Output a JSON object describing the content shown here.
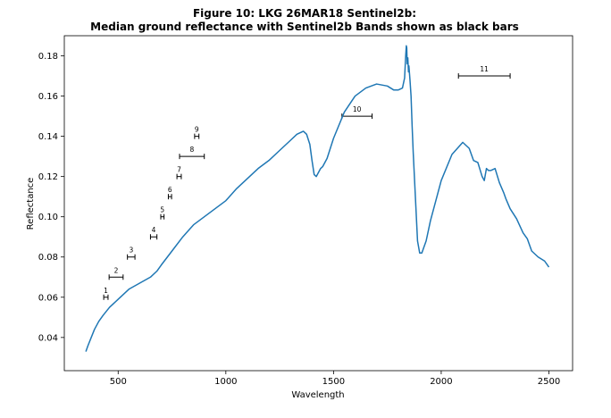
{
  "chart_data": {
    "type": "line",
    "title_line1": "Figure 10: LKG 26MAR18  Sentinel2b:",
    "title_line2": "Median ground reflectance with Sentinel2b Bands shown as black bars",
    "xlabel": "Wavelength",
    "ylabel": "Reflectance",
    "xlim": [
      250,
      2610
    ],
    "ylim": [
      0.0235,
      0.19
    ],
    "xticks": [
      500,
      1000,
      1500,
      2000,
      2500
    ],
    "xtick_labels": [
      "500",
      "1000",
      "1500",
      "2000",
      "2500"
    ],
    "yticks": [
      0.04,
      0.06,
      0.08,
      0.1,
      0.12,
      0.14,
      0.16,
      0.18
    ],
    "ytick_labels": [
      "0.04",
      "0.06",
      "0.08",
      "0.10",
      "0.12",
      "0.14",
      "0.16",
      "0.18"
    ],
    "grid": false,
    "colors": {
      "line": "#1f77b4",
      "bands": "#000000"
    },
    "series": [
      {
        "x": [
          350,
          360,
          375,
          390,
          410,
          430,
          460,
          500,
          550,
          600,
          650,
          680,
          700,
          750,
          800,
          850,
          900,
          950,
          1000,
          1050,
          1100,
          1150,
          1200,
          1250,
          1300,
          1330,
          1350,
          1360,
          1375,
          1390,
          1400,
          1410,
          1420,
          1440,
          1450,
          1470,
          1500,
          1550,
          1600,
          1650,
          1700,
          1750,
          1780,
          1800,
          1820,
          1830,
          1835,
          1838,
          1840,
          1842,
          1845,
          1848,
          1850,
          1855,
          1860,
          1865,
          1870,
          1880,
          1890,
          1900,
          1910,
          1920,
          1930,
          1950,
          2000,
          2050,
          2100,
          2130,
          2150,
          2170,
          2190,
          2200,
          2210,
          2220,
          2230,
          2250,
          2270,
          2290,
          2300,
          2320,
          2350,
          2380,
          2400,
          2420,
          2450,
          2480,
          2500
        ],
        "y": [
          0.033,
          0.036,
          0.04,
          0.044,
          0.048,
          0.051,
          0.055,
          0.059,
          0.064,
          0.067,
          0.07,
          0.073,
          0.076,
          0.083,
          0.09,
          0.096,
          0.1,
          0.104,
          0.108,
          0.114,
          0.119,
          0.124,
          0.128,
          0.133,
          0.138,
          0.141,
          0.142,
          0.1425,
          0.141,
          0.136,
          0.128,
          0.121,
          0.12,
          0.124,
          0.125,
          0.129,
          0.139,
          0.152,
          0.16,
          0.164,
          0.166,
          0.165,
          0.163,
          0.163,
          0.164,
          0.169,
          0.18,
          0.185,
          0.184,
          0.176,
          0.179,
          0.172,
          0.175,
          0.168,
          0.16,
          0.145,
          0.132,
          0.11,
          0.088,
          0.082,
          0.082,
          0.085,
          0.088,
          0.098,
          0.118,
          0.131,
          0.137,
          0.134,
          0.128,
          0.127,
          0.12,
          0.118,
          0.124,
          0.123,
          0.123,
          0.124,
          0.117,
          0.112,
          0.109,
          0.104,
          0.099,
          0.092,
          0.089,
          0.083,
          0.08,
          0.078,
          0.075
        ]
      }
    ],
    "bands": [
      {
        "label": "1",
        "x0": 433,
        "x1": 453,
        "y": 0.06
      },
      {
        "label": "2",
        "x0": 458,
        "x1": 523,
        "y": 0.07
      },
      {
        "label": "3",
        "x0": 543,
        "x1": 578,
        "y": 0.08
      },
      {
        "label": "4",
        "x0": 650,
        "x1": 680,
        "y": 0.09
      },
      {
        "label": "5",
        "x0": 698,
        "x1": 713,
        "y": 0.1
      },
      {
        "label": "6",
        "x0": 733,
        "x1": 748,
        "y": 0.11
      },
      {
        "label": "7",
        "x0": 773,
        "x1": 793,
        "y": 0.12
      },
      {
        "label": "8",
        "x0": 785,
        "x1": 900,
        "y": 0.13
      },
      {
        "label": "9",
        "x0": 855,
        "x1": 875,
        "y": 0.14
      },
      {
        "label": "10",
        "x0": 1539,
        "x1": 1679,
        "y": 0.15
      },
      {
        "label": "11",
        "x0": 2080,
        "x1": 2320,
        "y": 0.17
      }
    ]
  }
}
